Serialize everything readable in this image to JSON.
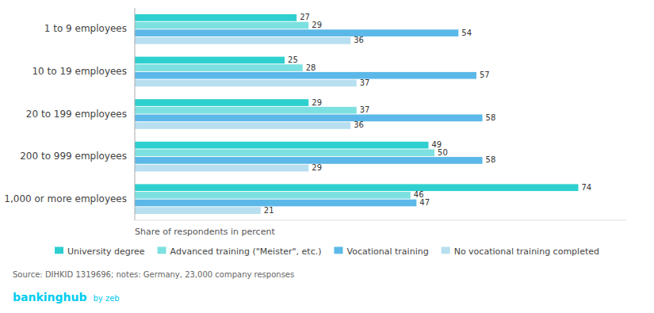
{
  "chart_data": {
    "type": "bar",
    "orientation": "horizontal",
    "categories": [
      "1 to 9 employees",
      "10 to 19 employees",
      "20 to 199 employees",
      "200 to 999 employees",
      "1,000 or more employees"
    ],
    "series": [
      {
        "name": "University degree",
        "color": "#2ECFCF",
        "values": [
          27,
          25,
          29,
          49,
          74
        ]
      },
      {
        "name": "Advanced training (\"Meister\", etc.)",
        "color": "#7DE0E0",
        "values": [
          29,
          28,
          37,
          50,
          46
        ]
      },
      {
        "name": "Vocational training",
        "color": "#5BB8E8",
        "values": [
          54,
          57,
          58,
          58,
          47
        ]
      },
      {
        "name": "No vocational training completed",
        "color": "#B8DFF0",
        "values": [
          36,
          37,
          36,
          29,
          21
        ]
      }
    ],
    "x_label": "Share of respondents in percent",
    "xlim": [
      0,
      82
    ],
    "tick_labels": "y",
    "grid": false,
    "legend": "bottom",
    "data_labels": true,
    "annotations": [
      {
        "text": "Source: DIHKID 1319696; notes: Germany, 23,000 company responses"
      },
      {
        "text": "bankinghub",
        "color": "#00CCEE"
      },
      {
        "text": "by zeb",
        "color": "#00CCEE"
      }
    ]
  }
}
